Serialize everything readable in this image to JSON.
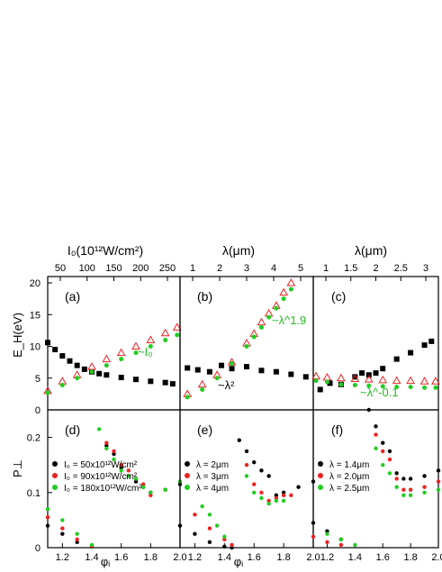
{
  "top_axes": [
    {
      "label": "I₀(10¹²W/cm²)",
      "ticks": [
        50,
        100,
        150,
        200,
        250
      ]
    },
    {
      "label": "λ(μm)",
      "ticks": [
        1,
        2,
        3,
        4,
        5
      ]
    },
    {
      "label": "λ(μm)",
      "ticks": [
        1.0,
        1.5,
        2.0,
        2.5,
        3.0
      ]
    }
  ],
  "chart_data": [
    {
      "type": "scatter",
      "panel": "(a)",
      "xlabel": "",
      "ylabel": "E_H(eV)",
      "xlim": [
        1.1,
        2.0
      ],
      "ylim": [
        0,
        21
      ],
      "yticks": [
        0,
        5,
        10,
        15,
        20
      ],
      "annotations": [
        {
          "text": "~I₀",
          "color": "#22bb22"
        }
      ],
      "series": [
        {
          "name": "",
          "marker": "square",
          "color": "#000000",
          "x": [
            1.1,
            1.15,
            1.2,
            1.25,
            1.3,
            1.35,
            1.4,
            1.45,
            1.5,
            1.6,
            1.7,
            1.8,
            1.9,
            1.95
          ],
          "y": [
            10.6,
            9.5,
            8.5,
            7.7,
            7.0,
            6.4,
            6.0,
            5.7,
            5.5,
            5.1,
            4.8,
            4.5,
            4.3,
            4.1
          ]
        },
        {
          "name": "",
          "marker": "triangle-open",
          "color": "#ee2222",
          "x": [
            1.1,
            1.2,
            1.3,
            1.4,
            1.5,
            1.6,
            1.7,
            1.8,
            1.9,
            1.98
          ],
          "y": [
            3.0,
            4.5,
            5.5,
            6.8,
            8.0,
            9.0,
            10.0,
            11.0,
            12.1,
            13.0
          ]
        },
        {
          "name": "",
          "marker": "circle",
          "color": "#22cc22",
          "x": [
            1.1,
            1.2,
            1.3,
            1.4,
            1.5,
            1.6,
            1.7,
            1.8,
            1.9,
            1.98
          ],
          "y": [
            2.7,
            3.9,
            5.0,
            6.0,
            7.0,
            8.0,
            9.0,
            10.0,
            11.0,
            11.8
          ]
        }
      ]
    },
    {
      "type": "scatter",
      "panel": "(b)",
      "xlabel": "",
      "ylabel": "",
      "xlim": [
        1.1,
        2.0
      ],
      "ylim": [
        0,
        21
      ],
      "annotations": [
        {
          "text": "~λ^1.9",
          "color": "#22bb22"
        },
        {
          "text": "~λ²",
          "color": "#000000"
        }
      ],
      "series": [
        {
          "name": "",
          "marker": "square",
          "color": "#000000",
          "x": [
            1.15,
            1.22,
            1.3,
            1.38,
            1.45,
            1.55,
            1.65,
            1.75,
            1.85,
            1.95
          ],
          "y": [
            6.6,
            6.3,
            6.0,
            7.0,
            6.5,
            6.8,
            6.2,
            6.0,
            5.6,
            5.2
          ]
        },
        {
          "name": "",
          "marker": "triangle-open",
          "color": "#ee2222",
          "x": [
            1.15,
            1.25,
            1.35,
            1.45,
            1.55,
            1.6,
            1.65,
            1.7,
            1.75,
            1.8,
            1.85
          ],
          "y": [
            2.5,
            4.0,
            5.5,
            7.5,
            10.5,
            12.0,
            13.8,
            15.2,
            16.4,
            18.5,
            20.0
          ]
        },
        {
          "name": "",
          "marker": "circle",
          "color": "#22cc22",
          "x": [
            1.15,
            1.25,
            1.35,
            1.45,
            1.55,
            1.6,
            1.65,
            1.7,
            1.75,
            1.8,
            1.85
          ],
          "y": [
            2.0,
            3.2,
            5.0,
            7.3,
            10.0,
            11.5,
            13.0,
            14.6,
            16.0,
            17.5,
            19.0
          ]
        }
      ]
    },
    {
      "type": "scatter",
      "panel": "(c)",
      "xlabel": "",
      "ylabel": "",
      "xlim": [
        1.1,
        2.0
      ],
      "ylim": [
        0,
        21
      ],
      "annotations": [
        {
          "text": "~λ^-0.1",
          "color": "#22bb22"
        }
      ],
      "series": [
        {
          "name": "",
          "marker": "square",
          "color": "#000000",
          "x": [
            1.15,
            1.22,
            1.3,
            1.4,
            1.45,
            1.5,
            1.55,
            1.6,
            1.7,
            1.8,
            1.9,
            1.95
          ],
          "y": [
            3.2,
            4.2,
            4.0,
            5.2,
            5.8,
            5.5,
            5.8,
            6.5,
            8.0,
            9.0,
            10.2,
            10.8
          ]
        },
        {
          "name": "",
          "marker": "triangle-open",
          "color": "#ee2222",
          "x": [
            1.12,
            1.2,
            1.3,
            1.4,
            1.5,
            1.6,
            1.7,
            1.8,
            1.9,
            1.98
          ],
          "y": [
            5.3,
            5.1,
            5.0,
            4.9,
            4.8,
            4.7,
            4.6,
            4.6,
            4.5,
            4.5
          ]
        },
        {
          "name": "",
          "marker": "circle",
          "color": "#22cc22",
          "x": [
            1.12,
            1.2,
            1.3,
            1.4,
            1.5,
            1.6,
            1.7,
            1.8,
            1.9,
            1.98
          ],
          "y": [
            4.6,
            4.4,
            4.0,
            3.9,
            3.8,
            3.7,
            3.6,
            3.6,
            3.5,
            3.5
          ]
        }
      ]
    },
    {
      "type": "scatter",
      "panel": "(d)",
      "xlabel": "φᵢ",
      "ylabel": "P⊥",
      "xlim": [
        1.1,
        2.0
      ],
      "ylim": [
        0,
        0.25
      ],
      "xticks": [
        1.2,
        1.4,
        1.6,
        1.8,
        2.0
      ],
      "yticks": [
        0.0,
        0.1,
        0.2
      ],
      "series": [
        {
          "name": "I₀ = 50x10¹²W/cm²",
          "color": "#000000",
          "x": [
            1.1,
            1.2,
            1.3,
            1.4,
            1.5,
            1.55,
            1.6,
            1.65,
            1.7,
            1.75,
            1.8,
            1.9,
            2.0
          ],
          "y": [
            0.04,
            0.025,
            0.01,
            0.002,
            0.185,
            0.17,
            0.145,
            0.13,
            0.12,
            0.11,
            0.1,
            0.105,
            0.115
          ]
        },
        {
          "name": "I₀ = 90x10¹²W/cm²",
          "color": "#ee2222",
          "x": [
            1.1,
            1.2,
            1.3,
            1.4,
            1.5,
            1.55,
            1.6,
            1.65,
            1.7,
            1.75,
            1.8,
            1.9,
            2.0
          ],
          "y": [
            0.055,
            0.035,
            0.015,
            0.003,
            0.19,
            0.175,
            0.15,
            0.14,
            0.125,
            0.115,
            0.095,
            0.105,
            0.12
          ]
        },
        {
          "name": "I₀ = 180x10¹²W/cm²",
          "color": "#22cc22",
          "x": [
            1.1,
            1.2,
            1.3,
            1.4,
            1.45,
            1.5,
            1.55,
            1.6,
            1.65,
            1.7,
            1.75,
            1.8,
            1.9,
            2.0
          ],
          "y": [
            0.07,
            0.05,
            0.025,
            0.005,
            0.215,
            0.18,
            0.16,
            0.14,
            0.13,
            0.125,
            0.11,
            0.1,
            0.105,
            0.12
          ]
        }
      ]
    },
    {
      "type": "scatter",
      "panel": "(e)",
      "xlabel": "φᵢ",
      "ylabel": "",
      "xlim": [
        1.1,
        2.0
      ],
      "ylim": [
        0,
        0.25
      ],
      "xticks": [
        1.2,
        1.4,
        1.6,
        1.8,
        2.0
      ],
      "series": [
        {
          "name": "λ = 2μm",
          "color": "#000000",
          "x": [
            1.1,
            1.2,
            1.3,
            1.4,
            1.45,
            1.5,
            1.55,
            1.6,
            1.65,
            1.7,
            1.75,
            1.8,
            1.9,
            2.0
          ],
          "y": [
            0.04,
            0.025,
            0.01,
            0.002,
            0.0,
            0.195,
            0.175,
            0.155,
            0.14,
            0.13,
            0.095,
            0.1,
            0.11,
            0.12
          ]
        },
        {
          "name": "λ = 3μm",
          "color": "#ee2222",
          "x": [
            1.2,
            1.3,
            1.4,
            1.45,
            1.55,
            1.6,
            1.65,
            1.7,
            1.75,
            1.8,
            1.85
          ],
          "y": [
            0.06,
            0.035,
            0.015,
            0.005,
            0.15,
            0.115,
            0.1,
            0.085,
            0.09,
            0.095,
            0.095
          ]
        },
        {
          "name": "λ = 4μm",
          "color": "#22cc22",
          "x": [
            1.25,
            1.3,
            1.35,
            1.4,
            1.55,
            1.6,
            1.65,
            1.7,
            1.75,
            1.8
          ],
          "y": [
            0.075,
            0.06,
            0.04,
            0.02,
            0.13,
            0.1,
            0.09,
            0.08,
            0.085,
            0.085
          ]
        }
      ]
    },
    {
      "type": "scatter",
      "panel": "(f)",
      "xlabel": "",
      "ylabel": "",
      "xlim": [
        1.1,
        2.0
      ],
      "ylim": [
        0,
        0.25
      ],
      "xticks": [
        1.2,
        1.4,
        1.6,
        1.8,
        2.0
      ],
      "series": [
        {
          "name": "λ = 1.4μm",
          "color": "#000000",
          "x": [
            1.1,
            1.2,
            1.3,
            1.5,
            1.55,
            1.6,
            1.65,
            1.7,
            1.75,
            1.8,
            1.9,
            2.0
          ],
          "y": [
            0.045,
            0.03,
            0.015,
            0.25,
            0.22,
            0.19,
            0.175,
            0.135,
            0.125,
            0.125,
            0.13,
            0.14
          ]
        },
        {
          "name": "λ = 2.0μm",
          "color": "#ee2222",
          "x": [
            1.1,
            1.2,
            1.3,
            1.55,
            1.6,
            1.65,
            1.7,
            1.75,
            1.8,
            1.9,
            2.0
          ],
          "y": [
            0.02,
            0.01,
            0.005,
            0.205,
            0.175,
            0.16,
            0.125,
            0.105,
            0.105,
            0.11,
            0.12
          ]
        },
        {
          "name": "λ = 2.5μm",
          "color": "#22cc22",
          "x": [
            1.2,
            1.3,
            1.4,
            1.55,
            1.6,
            1.65,
            1.7,
            1.75,
            1.8,
            1.9,
            2.0
          ],
          "y": [
            0.025,
            0.015,
            0.005,
            0.18,
            0.15,
            0.135,
            0.11,
            0.095,
            0.095,
            0.1,
            0.105
          ]
        }
      ]
    }
  ]
}
